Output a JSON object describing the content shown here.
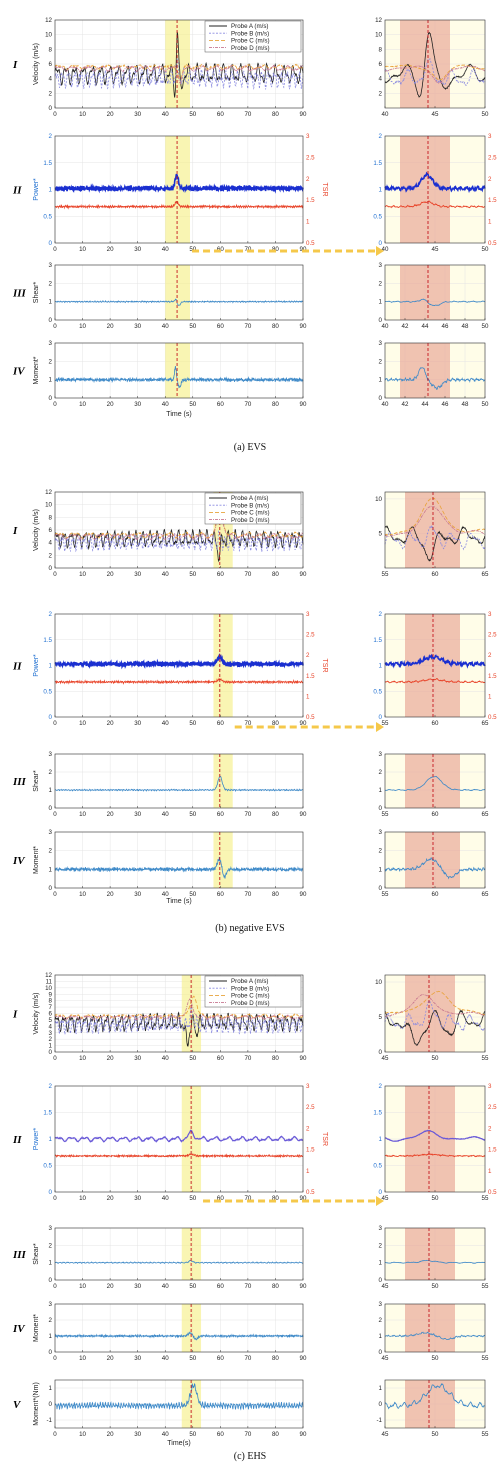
{
  "chart_data": [
    {
      "panel": "(a) EVS",
      "type": "line",
      "caption": "(a) EVS",
      "time_label": "Time (s)",
      "event_time": 44.3,
      "band_main": [
        40,
        49
      ],
      "band_zoom": [
        41.5,
        46.5
      ],
      "rows": [
        {
          "roman": "I",
          "ylabel": "Velocity (m/s)",
          "ylim": [
            0,
            12
          ],
          "yticks": [
            0,
            2,
            4,
            6,
            8,
            10,
            12
          ],
          "zoom_xlim": [
            40,
            50
          ],
          "zoom_xticks": [
            40,
            45,
            50
          ],
          "zoom_ylim": [
            0,
            12
          ],
          "zoom_yticks": [
            2,
            4,
            6,
            8,
            10,
            12
          ],
          "legend": [
            "Probe A (m/s)",
            "Probe B (m/s)",
            "Probe C (m/s)",
            "Probe D (m/s)"
          ],
          "series": [
            {
              "name": "Probe A (m/s)",
              "color": "#222222",
              "dash": "",
              "base": 4.6,
              "amp": 0.9,
              "noise": 0.15,
              "freq": 0.9,
              "spikes": [
                {
                  "t": 43.6,
                  "h": -2.7,
                  "w": 0.5
                },
                {
                  "t": 44.4,
                  "h": 6.2,
                  "w": 0.55
                },
                {
                  "t": 45.7,
                  "h": -2.2,
                  "w": 0.6
                }
              ]
            },
            {
              "name": "Probe B (m/s)",
              "color": "#8a8ae0",
              "dash": "2,1.5",
              "base": 4.0,
              "amp": 0.8,
              "noise": 0.25,
              "freq": 1.3,
              "spikes": [
                {
                  "t": 44.3,
                  "h": 1.6,
                  "w": 0.6
                }
              ]
            },
            {
              "name": "Probe C (m/s)",
              "color": "#e8a23a",
              "dash": "4,2",
              "base": 5.6,
              "amp": 0.2,
              "noise": 0.08,
              "freq": 0.5,
              "spikes": [
                {
                  "t": 45.5,
                  "h": -1.8,
                  "w": 0.9
                }
              ]
            },
            {
              "name": "Probe D (m/s)",
              "color": "#c87890",
              "dash": "3,1,1,1",
              "base": 5.4,
              "amp": 0.25,
              "noise": 0.08,
              "freq": 0.55,
              "spikes": [
                {
                  "t": 45.5,
                  "h": -1.7,
                  "w": 0.9
                }
              ]
            }
          ]
        },
        {
          "roman": "II",
          "ylabel": "Power*",
          "ylabel_right": "TSR",
          "ylim": [
            0,
            2
          ],
          "yticks": [
            0,
            0.5,
            1,
            1.5,
            2
          ],
          "ylim_right": [
            0.5,
            3
          ],
          "yticks_right": [
            0.5,
            1,
            1.5,
            2,
            2.5,
            3
          ],
          "zoom_xlim": [
            40,
            50
          ],
          "zoom_xticks": [
            40,
            45,
            50
          ],
          "series": [
            {
              "name": "Power*",
              "color": "#1a2fd0",
              "dash": "",
              "base": 1.02,
              "amp": 0.02,
              "noise": 0.03,
              "freq": 5,
              "width": 1.6,
              "spikes": [
                {
                  "t": 44.2,
                  "h": 0.25,
                  "w": 0.8
                }
              ]
            },
            {
              "name": "TSR",
              "color": "#e8442a",
              "dash": "",
              "base": 0.68,
              "amp": 0.01,
              "noise": 0.012,
              "freq": 4,
              "width": 0.9,
              "spikes": [
                {
                  "t": 44.2,
                  "h": 0.09,
                  "w": 0.9
                }
              ]
            }
          ]
        },
        {
          "roman": "III",
          "ylabel": "Shear*",
          "ylim": [
            0,
            3
          ],
          "yticks": [
            0,
            1,
            2,
            3
          ],
          "zoom_xlim": [
            40,
            50
          ],
          "zoom_xticks": [
            40,
            42,
            44,
            46,
            48,
            50
          ],
          "series": [
            {
              "name": "Shear*",
              "color": "#3d89c8",
              "dash": "",
              "base": 1.0,
              "amp": 0.02,
              "noise": 0.02,
              "freq": 3,
              "spikes": [
                {
                  "t": 43.8,
                  "h": 0.15,
                  "w": 0.4
                },
                {
                  "t": 45.0,
                  "h": -0.22,
                  "w": 0.7
                }
              ]
            }
          ]
        },
        {
          "roman": "IV",
          "ylabel": "Moment*",
          "ylim": [
            0,
            3
          ],
          "yticks": [
            0,
            1,
            2,
            3
          ],
          "zoom_xlim": [
            40,
            50
          ],
          "zoom_xticks": [
            40,
            42,
            44,
            46,
            48,
            50
          ],
          "series": [
            {
              "name": "Moment*",
              "color": "#3d89c8",
              "dash": "",
              "base": 1.0,
              "amp": 0.04,
              "noise": 0.07,
              "freq": 6,
              "spikes": [
                {
                  "t": 43.7,
                  "h": 0.7,
                  "w": 0.45
                },
                {
                  "t": 45.2,
                  "h": -0.45,
                  "w": 0.7
                }
              ]
            }
          ]
        }
      ]
    },
    {
      "panel": "(b) negative EVS",
      "type": "line",
      "caption": "(b) negative EVS",
      "time_label": "Time (s)",
      "event_time": 59.8,
      "band_main": [
        57.5,
        64.5
      ],
      "band_zoom": [
        57,
        62.5
      ],
      "rows": [
        {
          "roman": "I",
          "ylabel": "Velocity (m/s)",
          "ylim": [
            0,
            12
          ],
          "yticks": [
            0,
            2,
            4,
            6,
            8,
            10,
            12
          ],
          "zoom_xlim": [
            55,
            65
          ],
          "zoom_xticks": [
            55,
            60,
            65
          ],
          "zoom_ylim": [
            0,
            11
          ],
          "zoom_yticks": [
            5,
            10
          ],
          "legend": [
            "Probe A (m/s)",
            "Probe B (m/s)",
            "Probe C (m/s)",
            "Probe D (m/s)"
          ],
          "series": [
            {
              "name": "Probe A (m/s)",
              "color": "#222222",
              "dash": "",
              "base": 4.6,
              "amp": 0.9,
              "noise": 0.2,
              "freq": 1.1,
              "spikes": [
                {
                  "t": 59.5,
                  "h": -2.5,
                  "w": 0.8
                }
              ]
            },
            {
              "name": "Probe B (m/s)",
              "color": "#8a8ae0",
              "dash": "2,1.5",
              "base": 4.0,
              "amp": 0.8,
              "noise": 0.25,
              "freq": 1.4,
              "spikes": [
                {
                  "t": 59.8,
                  "h": 1.2,
                  "w": 0.6
                }
              ]
            },
            {
              "name": "Probe C (m/s)",
              "color": "#e8a23a",
              "dash": "4,2",
              "base": 5.2,
              "amp": 0.3,
              "noise": 0.08,
              "freq": 0.5,
              "spikes": [
                {
                  "t": 59.9,
                  "h": 4.8,
                  "w": 1.5
                }
              ]
            },
            {
              "name": "Probe D (m/s)",
              "color": "#c87890",
              "dash": "3,1,1,1",
              "base": 5.0,
              "amp": 0.3,
              "noise": 0.08,
              "freq": 0.55,
              "spikes": [
                {
                  "t": 59.9,
                  "h": 4.0,
                  "w": 1.5
                }
              ]
            }
          ]
        },
        {
          "roman": "II",
          "ylabel": "Power*",
          "ylabel_right": "TSR",
          "ylim": [
            0,
            2
          ],
          "yticks": [
            0,
            0.5,
            1,
            1.5,
            2
          ],
          "ylim_right": [
            0.5,
            3
          ],
          "yticks_right": [
            0.5,
            1,
            1.5,
            2,
            2.5,
            3
          ],
          "zoom_xlim": [
            55,
            65
          ],
          "zoom_xticks": [
            55,
            60,
            65
          ],
          "series": [
            {
              "name": "Power*",
              "color": "#1a2fd0",
              "dash": "",
              "base": 1.03,
              "amp": 0.02,
              "noise": 0.03,
              "freq": 5,
              "width": 1.6,
              "spikes": [
                {
                  "t": 59.8,
                  "h": 0.14,
                  "w": 1.2
                }
              ]
            },
            {
              "name": "TSR",
              "color": "#e8442a",
              "dash": "",
              "base": 0.68,
              "amp": 0.01,
              "noise": 0.012,
              "freq": 4,
              "width": 0.9,
              "spikes": [
                {
                  "t": 59.8,
                  "h": 0.05,
                  "w": 1.2
                }
              ]
            }
          ]
        },
        {
          "roman": "III",
          "ylabel": "Shear*",
          "ylim": [
            0,
            3
          ],
          "yticks": [
            0,
            1,
            2,
            3
          ],
          "zoom_xlim": [
            55,
            65
          ],
          "zoom_xticks": [
            55,
            60,
            65
          ],
          "series": [
            {
              "name": "Shear*",
              "color": "#3d89c8",
              "dash": "",
              "base": 1.0,
              "amp": 0.02,
              "noise": 0.02,
              "freq": 3,
              "spikes": [
                {
                  "t": 59.9,
                  "h": 0.75,
                  "w": 1.1
                }
              ]
            }
          ]
        },
        {
          "roman": "IV",
          "ylabel": "Moment*",
          "ylim": [
            0,
            3
          ],
          "yticks": [
            0,
            1,
            2,
            3
          ],
          "zoom_xlim": [
            55,
            65
          ],
          "zoom_xticks": [
            55,
            60,
            65
          ],
          "series": [
            {
              "name": "Moment*",
              "color": "#3d89c8",
              "dash": "",
              "base": 1.0,
              "amp": 0.04,
              "noise": 0.07,
              "freq": 6,
              "spikes": [
                {
                  "t": 59.6,
                  "h": 0.55,
                  "w": 1.0
                },
                {
                  "t": 61.5,
                  "h": -0.45,
                  "w": 0.8
                }
              ]
            }
          ]
        }
      ]
    },
    {
      "panel": "(c) EHS",
      "type": "line",
      "caption": "(c) EHS",
      "time_label": "Time(s)",
      "event_time": 49.4,
      "band_main": [
        46,
        53
      ],
      "band_zoom": [
        47,
        52
      ],
      "rows": [
        {
          "roman": "I",
          "ylabel": "Velocity (m/s)",
          "ylim": [
            0,
            12
          ],
          "yticks": [
            0,
            1,
            2,
            3,
            4,
            5,
            6,
            7,
            8,
            9,
            10,
            11,
            12
          ],
          "zoom_xlim": [
            45,
            55
          ],
          "zoom_xticks": [
            45,
            50,
            55
          ],
          "zoom_ylim": [
            0,
            11
          ],
          "zoom_yticks": [
            0,
            5,
            10
          ],
          "legend": [
            "Probe A (m/s)",
            "Probe B (m/s)",
            "Probe C (m/s)",
            "Probe D (m/s)"
          ],
          "series": [
            {
              "name": "Probe A (m/s)",
              "color": "#222222",
              "dash": "",
              "base": 4.6,
              "amp": 0.9,
              "noise": 0.2,
              "freq": 1.1,
              "spikes": [
                {
                  "t": 48.0,
                  "h": -3.0,
                  "w": 1.0
                },
                {
                  "t": 51.5,
                  "h": -1.5,
                  "w": 0.7
                }
              ]
            },
            {
              "name": "Probe B (m/s)",
              "color": "#8a8ae0",
              "dash": "2,1.5",
              "base": 4.2,
              "amp": 0.8,
              "noise": 0.25,
              "freq": 1.4,
              "spikes": [
                {
                  "t": 49.6,
                  "h": 2.0,
                  "w": 0.8
                }
              ]
            },
            {
              "name": "Probe C (m/s)",
              "color": "#e8a23a",
              "dash": "4,2",
              "base": 5.6,
              "amp": 0.2,
              "noise": 0.08,
              "freq": 0.5,
              "spikes": [
                {
                  "t": 50.2,
                  "h": 3.2,
                  "w": 1.6
                }
              ]
            },
            {
              "name": "Probe D (m/s)",
              "color": "#c87890",
              "dash": "3,1,1,1",
              "base": 5.4,
              "amp": 0.2,
              "noise": 0.08,
              "freq": 0.55,
              "spikes": [
                {
                  "t": 49.0,
                  "h": 2.6,
                  "w": 1.6
                }
              ]
            }
          ]
        },
        {
          "roman": "II",
          "ylabel": "Power*",
          "ylabel_right": "TSR",
          "ylim": [
            0,
            2
          ],
          "yticks": [
            0,
            0.5,
            1,
            1.5,
            2
          ],
          "ylim_right": [
            0.5,
            3
          ],
          "yticks_right": [
            0.5,
            1,
            1.5,
            2,
            2.5,
            3
          ],
          "zoom_xlim": [
            45,
            55
          ],
          "zoom_xticks": [
            45,
            50,
            55
          ],
          "series": [
            {
              "name": "Power*",
              "color": "#6a5ad8",
              "dash": "",
              "base": 1.0,
              "amp": 0.03,
              "noise": 0.008,
              "freq": 0.6,
              "width": 1.2,
              "spikes": [
                {
                  "t": 49.5,
                  "h": 0.12,
                  "w": 1.5
                }
              ]
            },
            {
              "name": "TSR",
              "color": "#e8442a",
              "dash": "",
              "base": 0.68,
              "amp": 0.005,
              "noise": 0.012,
              "freq": 4,
              "width": 0.9,
              "spikes": [
                {
                  "t": 49.5,
                  "h": 0.03,
                  "w": 1.3
                }
              ]
            }
          ]
        },
        {
          "roman": "III",
          "ylabel": "Shear*",
          "ylim": [
            0,
            3
          ],
          "yticks": [
            0,
            1,
            2,
            3
          ],
          "zoom_xlim": [
            45,
            55
          ],
          "zoom_xticks": [
            45,
            50,
            55
          ],
          "series": [
            {
              "name": "Shear*",
              "color": "#3d89c8",
              "dash": "",
              "base": 1.0,
              "amp": 0.02,
              "noise": 0.015,
              "freq": 2,
              "spikes": [
                {
                  "t": 49.3,
                  "h": 0.12,
                  "w": 1.0
                }
              ]
            }
          ]
        },
        {
          "roman": "IV",
          "ylabel": "Moment*",
          "ylim": [
            0,
            3
          ],
          "yticks": [
            0,
            1,
            2,
            3
          ],
          "zoom_xlim": [
            45,
            55
          ],
          "zoom_xticks": [
            45,
            50,
            55
          ],
          "series": [
            {
              "name": "Moment*",
              "color": "#3d89c8",
              "dash": "",
              "base": 1.0,
              "amp": 0.03,
              "noise": 0.04,
              "freq": 5,
              "spikes": [
                {
                  "t": 49.0,
                  "h": 0.2,
                  "w": 1.0
                },
                {
                  "t": 51.2,
                  "h": -0.2,
                  "w": 0.9
                }
              ]
            }
          ]
        },
        {
          "roman": "V",
          "ylabel": "Moment*(Nm)",
          "ylim": [
            -1.5,
            1.5
          ],
          "yticks": [
            -1,
            0,
            1
          ],
          "zoom_xlim": [
            45,
            55
          ],
          "zoom_xticks": [
            45,
            50,
            55
          ],
          "series": [
            {
              "name": "Moment*(Nm)",
              "color": "#3d89c8",
              "dash": "",
              "base": -0.1,
              "amp": 0.12,
              "noise": 0.07,
              "freq": 3,
              "spikes": [
                {
                  "t": 50.3,
                  "h": 1.25,
                  "w": 1.6
                }
              ]
            }
          ]
        }
      ]
    }
  ]
}
